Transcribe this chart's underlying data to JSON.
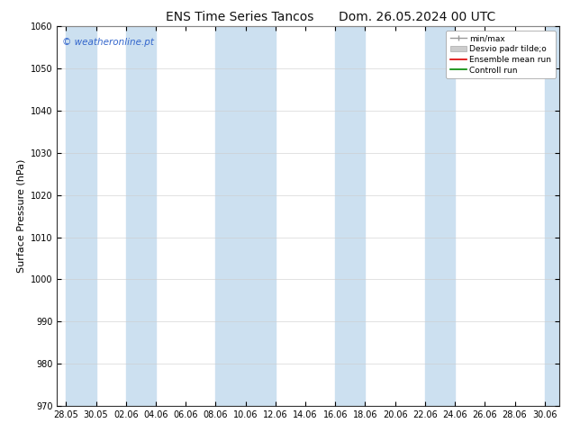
{
  "title_left": "ENS Time Series Tancos",
  "title_right": "Dom. 26.05.2024 00 UTC",
  "ylabel": "Surface Pressure (hPa)",
  "ylim": [
    970,
    1060
  ],
  "yticks": [
    970,
    980,
    990,
    1000,
    1010,
    1020,
    1030,
    1040,
    1050,
    1060
  ],
  "xtick_labels": [
    "28.05",
    "30.05",
    "02.06",
    "04.06",
    "06.06",
    "08.06",
    "10.06",
    "12.06",
    "14.06",
    "16.06",
    "18.06",
    "20.06",
    "22.06",
    "24.06",
    "26.06",
    "28.06",
    "30.06"
  ],
  "background_color": "#ffffff",
  "plot_bg_color": "#ffffff",
  "shaded_band_color": "#cce0f0",
  "watermark_text": "© weatheronline.pt",
  "watermark_color": "#3366cc",
  "legend_entries": [
    "min/max",
    "Desvio padr tilde;o",
    "Ensemble mean run",
    "Controll run"
  ],
  "title_fontsize": 10,
  "tick_fontsize": 7,
  "ylabel_fontsize": 8,
  "fig_width": 6.34,
  "fig_height": 4.9,
  "dpi": 100,
  "shaded_indices": [
    0,
    2,
    5,
    7,
    9,
    12,
    16
  ]
}
